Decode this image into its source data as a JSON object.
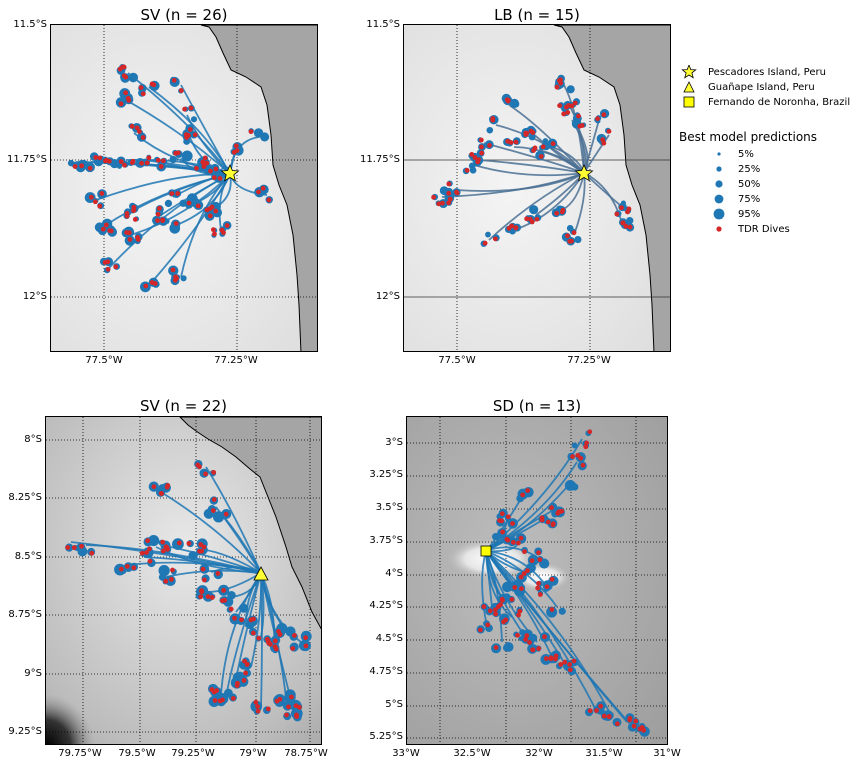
{
  "colors": {
    "track": "#1f77b4",
    "track_lb": "#4a7094",
    "dive": "#d62728",
    "land": "#a5a5a5",
    "star_fill": "#ffff33",
    "square_fill": "#ffff00"
  },
  "panels": [
    {
      "id": "sv1",
      "title": "SV (n = 26)",
      "lat_labels": [
        "11.5°S",
        "11.75°S",
        "12°S"
      ],
      "lon_labels": [
        "77.5°W",
        "77.25°W"
      ],
      "colony_marker": "star-icon"
    },
    {
      "id": "lb",
      "title": "LB (n = 15)",
      "lat_labels": [
        "11.5°S",
        "11.75°S",
        "12°S"
      ],
      "lon_labels": [
        "77.5°W",
        "77.25°W"
      ],
      "colony_marker": "star-icon"
    },
    {
      "id": "sv2",
      "title": "SV (n = 22)",
      "lat_labels": [
        "8°S",
        "8.25°S",
        "8.5°S",
        "8.75°S",
        "9°S",
        "9.25°S"
      ],
      "lon_labels": [
        "79.75°W",
        "79.5°W",
        "79.25°W",
        "79°W",
        "78.75°W"
      ],
      "colony_marker": "triangle-icon"
    },
    {
      "id": "sd",
      "title": "SD (n = 13)",
      "lat_labels": [
        "3°S",
        "3.25°S",
        "3.5°S",
        "3.75°S",
        "4°S",
        "4.25°S",
        "4.5°S",
        "4.75°S",
        "5°S",
        "5.25°S"
      ],
      "lon_labels": [
        "33°W",
        "32.5°W",
        "32°W",
        "31.5°W",
        "31°W"
      ],
      "colony_marker": "square-icon"
    }
  ],
  "legend": {
    "colonies": [
      {
        "label": "Pescadores Island, Peru",
        "icon": "star-icon"
      },
      {
        "label": "Guañape Island, Peru",
        "icon": "triangle-icon"
      },
      {
        "label": "Fernando de Noronha, Brazil",
        "icon": "square-icon"
      }
    ],
    "predictions_title": "Best model predictions",
    "predictions": [
      {
        "label": "5%",
        "icon": "dot-5-icon"
      },
      {
        "label": "25%",
        "icon": "dot-25-icon"
      },
      {
        "label": "50%",
        "icon": "dot-50-icon"
      },
      {
        "label": "75%",
        "icon": "dot-75-icon"
      },
      {
        "label": "95%",
        "icon": "dot-95-icon"
      },
      {
        "label": "TDR Dives",
        "icon": "dive-dot-icon"
      }
    ]
  }
}
